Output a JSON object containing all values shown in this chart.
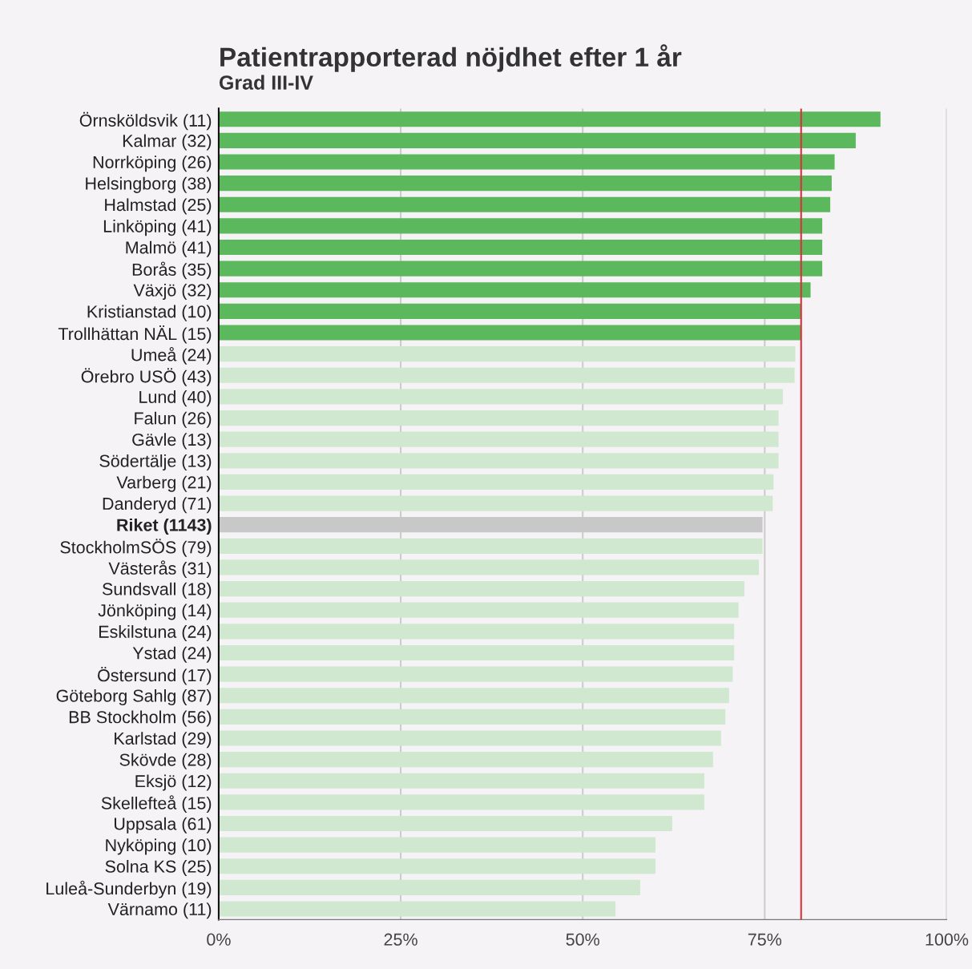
{
  "chart_data": {
    "type": "bar",
    "orientation": "horizontal",
    "title": "Patientrapporterad nöjdhet efter 1 år",
    "subtitle": "Grad III-IV",
    "categories": [
      "Örnsköldsvik (11)",
      "Kalmar (32)",
      "Norrköping (26)",
      "Helsingborg (38)",
      "Halmstad (25)",
      "Linköping (41)",
      "Malmö (41)",
      "Borås (35)",
      "Växjö (32)",
      "Kristianstad (10)",
      "Trollhättan NÄL (15)",
      "Umeå (24)",
      "Örebro USÖ (43)",
      "Lund (40)",
      "Falun (26)",
      "Gävle (13)",
      "Södertälje (13)",
      "Varberg (21)",
      "Danderyd (71)",
      "Riket (1143)",
      "StockholmSÖS (79)",
      "Västerås (31)",
      "Sundsvall (18)",
      "Jönköping (14)",
      "Eskilstuna (24)",
      "Ystad (24)",
      "Östersund (17)",
      "Göteborg Sahlg (87)",
      "BB Stockholm (56)",
      "Karlstad (29)",
      "Skövde (28)",
      "Eksjö (12)",
      "Skellefteå (15)",
      "Uppsala (61)",
      "Nyköping (10)",
      "Solna KS (25)",
      "Luleå-Sunderbyn (19)",
      "Värnamo (11)"
    ],
    "values": [
      90.9,
      87.5,
      84.6,
      84.2,
      84.0,
      82.9,
      82.9,
      82.9,
      81.3,
      80.0,
      80.0,
      79.2,
      79.1,
      77.5,
      76.9,
      76.9,
      76.9,
      76.2,
      76.1,
      74.7,
      74.7,
      74.2,
      72.2,
      71.4,
      70.8,
      70.8,
      70.6,
      70.1,
      69.6,
      69.0,
      67.9,
      66.7,
      66.7,
      62.3,
      60.0,
      60.0,
      57.9,
      54.5
    ],
    "colors": [
      "#5cb85c",
      "#5cb85c",
      "#5cb85c",
      "#5cb85c",
      "#5cb85c",
      "#5cb85c",
      "#5cb85c",
      "#5cb85c",
      "#5cb85c",
      "#5cb85c",
      "#5cb85c",
      "#d0e8d0",
      "#d0e8d0",
      "#d0e8d0",
      "#d0e8d0",
      "#d0e8d0",
      "#d0e8d0",
      "#d0e8d0",
      "#d0e8d0",
      "#c8c8c8",
      "#d0e8d0",
      "#d0e8d0",
      "#d0e8d0",
      "#d0e8d0",
      "#d0e8d0",
      "#d0e8d0",
      "#d0e8d0",
      "#d0e8d0",
      "#d0e8d0",
      "#d0e8d0",
      "#d0e8d0",
      "#d0e8d0",
      "#d0e8d0",
      "#d0e8d0",
      "#d0e8d0",
      "#d0e8d0",
      "#d0e8d0",
      "#d0e8d0"
    ],
    "xlim": [
      0,
      100
    ],
    "xticks": [
      {
        "value": 0,
        "label": "0%"
      },
      {
        "value": 25,
        "label": "25%"
      },
      {
        "value": 50,
        "label": "50%"
      },
      {
        "value": 75,
        "label": "75%"
      },
      {
        "value": 100,
        "label": "100%"
      }
    ],
    "ref_lines": [
      {
        "axis": "x",
        "value": 80,
        "label": null,
        "color": "#d9303c"
      }
    ],
    "grid": "x",
    "legend": false
  }
}
